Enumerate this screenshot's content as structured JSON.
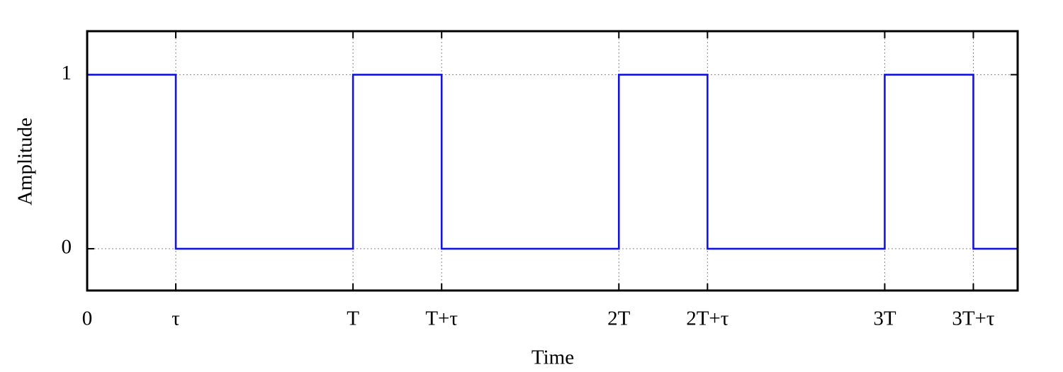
{
  "chart_data": {
    "type": "line",
    "xlabel": "Time",
    "ylabel": "Amplitude",
    "x": [
      0,
      1,
      1,
      3,
      3,
      4,
      4,
      6,
      6,
      7,
      7,
      9,
      9,
      10,
      10,
      10.5
    ],
    "series": [
      {
        "color": "#1414dc",
        "values": [
          1,
          1,
          0,
          0,
          1,
          1,
          0,
          0,
          1,
          1,
          0,
          0,
          1,
          1,
          0,
          0
        ]
      }
    ],
    "xlim": [
      0,
      10.5
    ],
    "ylim": [
      -0.24,
      1.25
    ],
    "xticks": [
      0,
      {
        "value": 1,
        "label": "τ"
      },
      {
        "value": 3,
        "label": "T"
      },
      {
        "value": 4,
        "label": "T+τ"
      },
      {
        "value": 6,
        "label": "2T"
      },
      {
        "value": 7,
        "label": "2T+τ"
      },
      {
        "value": 9,
        "label": "3T"
      },
      {
        "value": 10,
        "label": "3T+τ"
      }
    ],
    "yticks": [
      0,
      1
    ],
    "grid": true
  }
}
